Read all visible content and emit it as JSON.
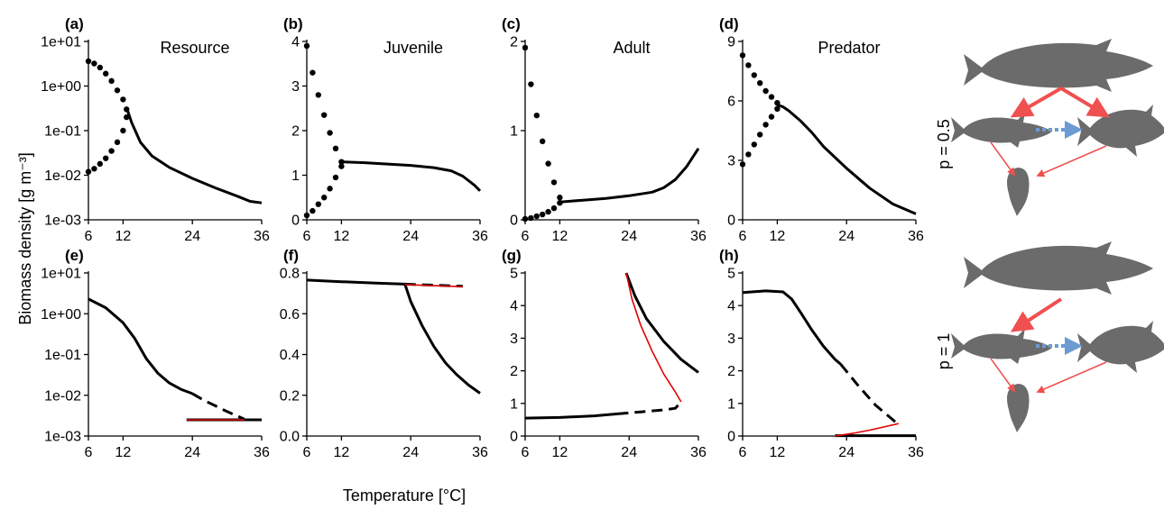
{
  "figure": {
    "ylabel": "Biomass density [g m⁻³]",
    "xlabel": "Temperature [°C]",
    "row_labels": [
      "p = 0.5",
      "p = 1"
    ]
  },
  "chart_data": [
    {
      "id": "a",
      "letter": "(a)",
      "title": "Resource",
      "type": "line",
      "yscale": "log",
      "xlim": [
        6,
        36
      ],
      "xticks": [
        6,
        12,
        24,
        36
      ],
      "ylim": [
        0.001,
        10
      ],
      "yticks": [
        0.001,
        0.01,
        0.1,
        1,
        10
      ],
      "yticklabels": [
        "1e-03",
        "1e-02",
        "1e-01",
        "1e+00",
        "1e+01"
      ],
      "series": [
        {
          "style": "dotted",
          "color": "#000000",
          "x": [
            6,
            7,
            8,
            9,
            10,
            11,
            12,
            12.6
          ],
          "y": [
            3.6,
            3.2,
            2.6,
            1.9,
            1.3,
            0.8,
            0.5,
            0.3
          ]
        },
        {
          "style": "dotted",
          "color": "#000000",
          "x": [
            6,
            7,
            8,
            9,
            10,
            11,
            12,
            12.6
          ],
          "y": [
            0.012,
            0.014,
            0.018,
            0.024,
            0.035,
            0.055,
            0.1,
            0.2
          ]
        },
        {
          "style": "solid",
          "color": "#000000",
          "x": [
            12.7,
            13.5,
            15,
            17,
            20,
            24,
            28,
            32,
            34,
            36
          ],
          "y": [
            0.3,
            0.15,
            0.055,
            0.027,
            0.015,
            0.0085,
            0.0052,
            0.0033,
            0.0026,
            0.0024
          ]
        }
      ]
    },
    {
      "id": "b",
      "letter": "(b)",
      "title": "Juvenile",
      "type": "line",
      "yscale": "linear",
      "xlim": [
        6,
        36
      ],
      "xticks": [
        6,
        12,
        24,
        36
      ],
      "ylim": [
        0,
        4
      ],
      "yticks": [
        0,
        1,
        2,
        3,
        4
      ],
      "yticklabels": [
        "0",
        "1",
        "2",
        "3",
        "4"
      ],
      "series": [
        {
          "style": "dotted",
          "color": "#000000",
          "x": [
            6,
            7,
            8,
            9,
            10,
            11,
            12
          ],
          "y": [
            3.9,
            3.3,
            2.8,
            2.35,
            1.95,
            1.6,
            1.3
          ]
        },
        {
          "style": "dotted",
          "color": "#000000",
          "x": [
            6,
            7,
            8,
            9,
            10,
            11,
            12
          ],
          "y": [
            0.1,
            0.2,
            0.35,
            0.5,
            0.7,
            0.95,
            1.2
          ]
        },
        {
          "style": "solid",
          "color": "#000000",
          "x": [
            12,
            16,
            20,
            24,
            28,
            31,
            33,
            35,
            36
          ],
          "y": [
            1.3,
            1.28,
            1.25,
            1.22,
            1.17,
            1.1,
            0.98,
            0.78,
            0.65
          ]
        }
      ]
    },
    {
      "id": "c",
      "letter": "(c)",
      "title": "Adult",
      "type": "line",
      "yscale": "linear",
      "xlim": [
        6,
        36
      ],
      "xticks": [
        6,
        12,
        24,
        36
      ],
      "ylim": [
        0,
        2
      ],
      "yticks": [
        0,
        1,
        2
      ],
      "yticklabels": [
        "0",
        "1",
        "2"
      ],
      "series": [
        {
          "style": "dotted",
          "color": "#000000",
          "x": [
            6,
            7,
            8,
            9,
            10,
            11,
            12
          ],
          "y": [
            1.93,
            1.52,
            1.17,
            0.88,
            0.63,
            0.42,
            0.25
          ]
        },
        {
          "style": "dotted",
          "color": "#000000",
          "x": [
            6,
            7,
            8,
            9,
            10,
            11,
            12
          ],
          "y": [
            0.01,
            0.02,
            0.04,
            0.06,
            0.09,
            0.13,
            0.19
          ]
        },
        {
          "style": "solid",
          "color": "#000000",
          "x": [
            12,
            16,
            20,
            24,
            28,
            30,
            32,
            34,
            36
          ],
          "y": [
            0.2,
            0.22,
            0.24,
            0.27,
            0.31,
            0.36,
            0.45,
            0.6,
            0.8
          ]
        }
      ]
    },
    {
      "id": "d",
      "letter": "(d)",
      "title": "Predator",
      "type": "line",
      "yscale": "linear",
      "xlim": [
        6,
        36
      ],
      "xticks": [
        6,
        12,
        24,
        36
      ],
      "ylim": [
        0,
        9
      ],
      "yticks": [
        0,
        3,
        6,
        9
      ],
      "yticklabels": [
        "0",
        "3",
        "6",
        "9"
      ],
      "series": [
        {
          "style": "dotted",
          "color": "#000000",
          "x": [
            6,
            7,
            8,
            9,
            10,
            11,
            12
          ],
          "y": [
            8.3,
            7.8,
            7.3,
            6.9,
            6.5,
            6.2,
            5.9
          ]
        },
        {
          "style": "dotted",
          "color": "#000000",
          "x": [
            6,
            7,
            8,
            9,
            10,
            11,
            12
          ],
          "y": [
            2.8,
            3.3,
            3.8,
            4.3,
            4.8,
            5.2,
            5.6
          ]
        },
        {
          "style": "solid",
          "color": "#000000",
          "x": [
            12,
            13,
            14,
            16,
            18,
            20,
            24,
            28,
            32,
            36
          ],
          "y": [
            5.8,
            5.7,
            5.5,
            5.0,
            4.4,
            3.7,
            2.6,
            1.6,
            0.8,
            0.3
          ]
        }
      ]
    },
    {
      "id": "e",
      "letter": "(e)",
      "title": "",
      "type": "line",
      "yscale": "log",
      "xlim": [
        6,
        36
      ],
      "xticks": [
        6,
        12,
        24,
        36
      ],
      "ylim": [
        0.001,
        10
      ],
      "yticks": [
        0.001,
        0.01,
        0.1,
        1,
        10
      ],
      "yticklabels": [
        "1e-03",
        "1e-02",
        "1e-01",
        "1e+00",
        "1e+01"
      ],
      "series": [
        {
          "style": "solid",
          "color": "#000000",
          "x": [
            6,
            9,
            12,
            14,
            16,
            18,
            20,
            22,
            24
          ],
          "y": [
            2.3,
            1.4,
            0.6,
            0.25,
            0.08,
            0.035,
            0.02,
            0.014,
            0.011
          ]
        },
        {
          "style": "dashed",
          "color": "#000000",
          "x": [
            24,
            26,
            28,
            30,
            32,
            33
          ],
          "y": [
            0.011,
            0.0075,
            0.0055,
            0.004,
            0.003,
            0.0026
          ]
        },
        {
          "style": "solid",
          "color": "#000000",
          "x": [
            23,
            36
          ],
          "y": [
            0.0025,
            0.0025
          ]
        },
        {
          "style": "solid",
          "color": "#e00000",
          "x": [
            23,
            33
          ],
          "y": [
            0.0025,
            0.0025
          ]
        }
      ]
    },
    {
      "id": "f",
      "letter": "(f)",
      "title": "",
      "type": "line",
      "yscale": "linear",
      "xlim": [
        6,
        36
      ],
      "xticks": [
        6,
        12,
        24,
        36
      ],
      "ylim": [
        0,
        0.8
      ],
      "yticks": [
        0,
        0.2,
        0.4,
        0.6,
        0.8
      ],
      "yticklabels": [
        "0.0",
        "0.2",
        "0.4",
        "0.6",
        "0.8"
      ],
      "series": [
        {
          "style": "solid",
          "color": "#000000",
          "x": [
            6,
            12,
            18,
            23
          ],
          "y": [
            0.765,
            0.757,
            0.75,
            0.745
          ]
        },
        {
          "style": "solid",
          "color": "#000000",
          "x": [
            23,
            24,
            26,
            28,
            30,
            32,
            34,
            36
          ],
          "y": [
            0.745,
            0.66,
            0.54,
            0.44,
            0.36,
            0.3,
            0.25,
            0.21
          ]
        },
        {
          "style": "dashed",
          "color": "#000000",
          "x": [
            23,
            33
          ],
          "y": [
            0.745,
            0.735
          ]
        },
        {
          "style": "solid",
          "color": "#e00000",
          "x": [
            23,
            33
          ],
          "y": [
            0.743,
            0.733
          ]
        }
      ]
    },
    {
      "id": "g",
      "letter": "(g)",
      "title": "",
      "type": "line",
      "yscale": "linear",
      "xlim": [
        6,
        36
      ],
      "xticks": [
        6,
        12,
        24,
        36
      ],
      "ylim": [
        0,
        5
      ],
      "yticks": [
        0,
        1,
        2,
        3,
        4,
        5
      ],
      "yticklabels": [
        "0",
        "1",
        "2",
        "3",
        "4",
        "5"
      ],
      "series": [
        {
          "style": "solid",
          "color": "#000000",
          "x": [
            6,
            12,
            18,
            22
          ],
          "y": [
            0.55,
            0.57,
            0.62,
            0.68
          ]
        },
        {
          "style": "dashed",
          "color": "#000000",
          "x": [
            22,
            26,
            30,
            32,
            33
          ],
          "y": [
            0.68,
            0.74,
            0.8,
            0.85,
            1.05
          ]
        },
        {
          "style": "solid",
          "color": "#000000",
          "x": [
            23.5,
            25,
            27,
            30,
            33,
            36
          ],
          "y": [
            5.0,
            4.3,
            3.6,
            2.9,
            2.35,
            1.95
          ]
        },
        {
          "style": "solid",
          "color": "#e00000",
          "x": [
            23.5,
            24.5,
            26,
            28,
            30,
            32,
            33
          ],
          "y": [
            5.0,
            4.2,
            3.4,
            2.6,
            1.9,
            1.35,
            1.05
          ]
        }
      ]
    },
    {
      "id": "h",
      "letter": "(h)",
      "title": "",
      "type": "line",
      "yscale": "linear",
      "xlim": [
        6,
        36
      ],
      "xticks": [
        6,
        12,
        24,
        36
      ],
      "ylim": [
        0,
        5
      ],
      "yticks": [
        0,
        1,
        2,
        3,
        4,
        5
      ],
      "yticklabels": [
        "0",
        "1",
        "2",
        "3",
        "4",
        "5"
      ],
      "series": [
        {
          "style": "solid",
          "color": "#000000",
          "x": [
            6,
            10,
            13,
            14.5,
            16,
            18,
            20,
            22,
            23
          ],
          "y": [
            4.4,
            4.45,
            4.42,
            4.2,
            3.8,
            3.25,
            2.75,
            2.35,
            2.2
          ]
        },
        {
          "style": "dashed",
          "color": "#000000",
          "x": [
            23,
            26,
            29,
            32,
            33
          ],
          "y": [
            2.2,
            1.55,
            0.95,
            0.5,
            0.35
          ]
        },
        {
          "style": "solid",
          "color": "#000000",
          "x": [
            22,
            36
          ],
          "y": [
            0.01,
            0.01
          ]
        },
        {
          "style": "solid",
          "color": "#e00000",
          "x": [
            22,
            25,
            28,
            31,
            33
          ],
          "y": [
            0.0,
            0.08,
            0.18,
            0.3,
            0.38
          ]
        }
      ]
    }
  ]
}
